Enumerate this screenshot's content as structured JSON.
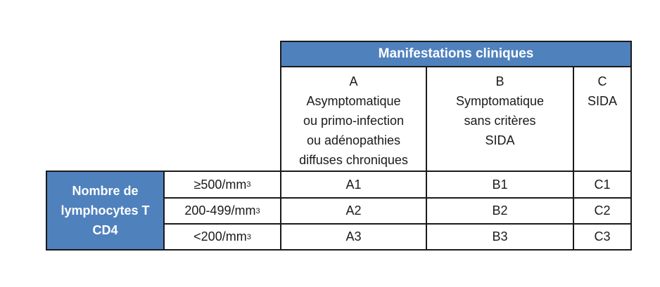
{
  "table": {
    "header": "Manifestations cliniques",
    "row_header": [
      "Nombre de",
      "lymphocytes T",
      "CD4"
    ],
    "columns": [
      {
        "letter": "A",
        "lines": [
          "Asymptomatique",
          "ou primo-infection",
          "ou adénopathies",
          "diffuses chroniques"
        ]
      },
      {
        "letter": "B",
        "lines": [
          "Symptomatique",
          "sans critères",
          "SIDA"
        ]
      },
      {
        "letter": "C",
        "lines": [
          "SIDA"
        ]
      }
    ],
    "rows": [
      {
        "range": "≥500/mm",
        "cells": [
          "A1",
          "B1",
          "C1"
        ]
      },
      {
        "range": "200-499/mm",
        "cells": [
          "A2",
          "B2",
          "C2"
        ]
      },
      {
        "range": "<200/mm",
        "cells": [
          "A3",
          "B3",
          "C3"
        ]
      }
    ],
    "unit_exponent": "3"
  },
  "colors": {
    "accent": "#4f81bd",
    "header_text": "#ffffff",
    "border": "#1a1a1a"
  }
}
